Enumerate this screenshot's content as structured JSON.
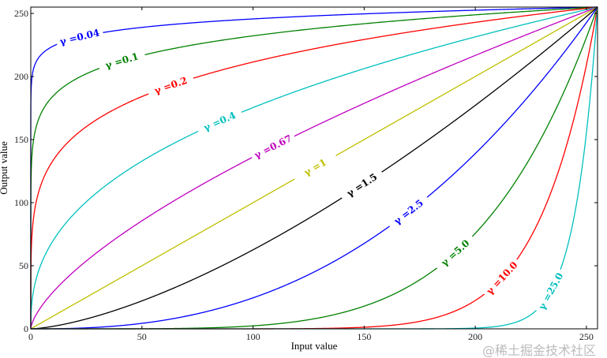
{
  "chart_data": {
    "type": "line",
    "xlabel": "Input value",
    "ylabel": "Output value",
    "xlim": [
      0,
      255
    ],
    "ylim": [
      0,
      255
    ],
    "xticks": [
      0,
      50,
      100,
      150,
      200,
      250
    ],
    "yticks": [
      0,
      50,
      100,
      150,
      200,
      250
    ],
    "grid": false,
    "formula": "output = 255 * (input/255)^gamma",
    "series": [
      {
        "name": "γ =0.04",
        "gamma": 0.04,
        "color": "#0000ff",
        "label_x": 22
      },
      {
        "name": "γ =0.1",
        "gamma": 0.1,
        "color": "#008000",
        "label_x": 41
      },
      {
        "name": "γ =0.2",
        "gamma": 0.2,
        "color": "#ff0000",
        "label_x": 63
      },
      {
        "name": "γ =0.4",
        "gamma": 0.4,
        "color": "#00bfbf",
        "label_x": 85
      },
      {
        "name": "γ =0.67",
        "gamma": 0.67,
        "color": "#bf00bf",
        "label_x": 109
      },
      {
        "name": "γ =1",
        "gamma": 1,
        "color": "#bfbf00",
        "label_x": 128
      },
      {
        "name": "γ =1.5",
        "gamma": 1.5,
        "color": "#000000",
        "label_x": 149
      },
      {
        "name": "γ =2.5",
        "gamma": 2.5,
        "color": "#0000ff",
        "label_x": 170
      },
      {
        "name": "γ =5.0",
        "gamma": 5.0,
        "color": "#008000",
        "label_x": 191
      },
      {
        "name": "γ =10.0",
        "gamma": 10.0,
        "color": "#ff0000",
        "label_x": 212
      },
      {
        "name": "γ =25.0",
        "gamma": 25.0,
        "color": "#00bfbf",
        "label_x": 234
      }
    ]
  },
  "watermark": "@稀土掘金技术社区"
}
